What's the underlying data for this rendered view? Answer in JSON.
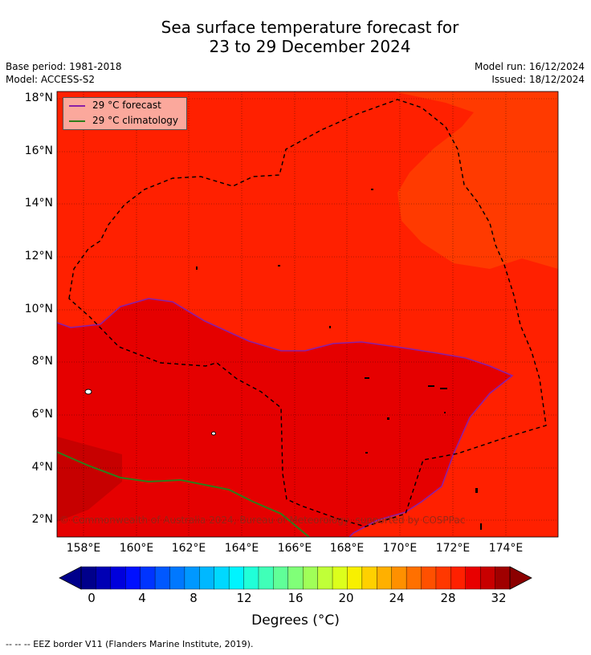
{
  "title_line1": "Sea surface temperature forecast for",
  "title_line2": "23 to 29 December 2024",
  "meta": {
    "base_period": "Base period: 1981-2018",
    "model": "Model: ACCESS-S2",
    "model_run": "Model run: 16/12/2024",
    "issued": "Issued: 18/12/2024"
  },
  "legend": {
    "forecast_label": "29 °C  forecast",
    "forecast_color": "#8b1fa6",
    "climatology_label": "29 °C  climatology",
    "climatology_color": "#2e7d1a"
  },
  "lat_labels": [
    "18°N",
    "16°N",
    "14°N",
    "12°N",
    "10°N",
    "8°N",
    "6°N",
    "4°N",
    "2°N"
  ],
  "lon_labels": [
    "158°E",
    "160°E",
    "162°E",
    "164°E",
    "166°E",
    "168°E",
    "170°E",
    "172°E",
    "174°E"
  ],
  "copyright": "© Commonwealth of Australia 2024, Bureau of Meteorology, supported by COSPPac",
  "colorbar": {
    "ticks": [
      "0",
      "4",
      "8",
      "12",
      "16",
      "20",
      "24",
      "28",
      "32"
    ],
    "label": "Degrees (°C)",
    "colors": [
      "#00008b",
      "#0000b4",
      "#0000dc",
      "#0010ff",
      "#0034ff",
      "#0058ff",
      "#0078ff",
      "#0098ff",
      "#00b8ff",
      "#00d8ff",
      "#00f4ff",
      "#20ffd8",
      "#40ffb8",
      "#60ff98",
      "#80ff78",
      "#a0ff58",
      "#c0ff38",
      "#dcff1c",
      "#f8f000",
      "#ffd000",
      "#ffb000",
      "#ff9000",
      "#ff7000",
      "#ff5000",
      "#ff3800",
      "#ff2000",
      "#e80000",
      "#c80000",
      "#a00000"
    ]
  },
  "footer": "-- -- -- EEZ border V11 (Flanders Marine Institute, 2019)."
}
